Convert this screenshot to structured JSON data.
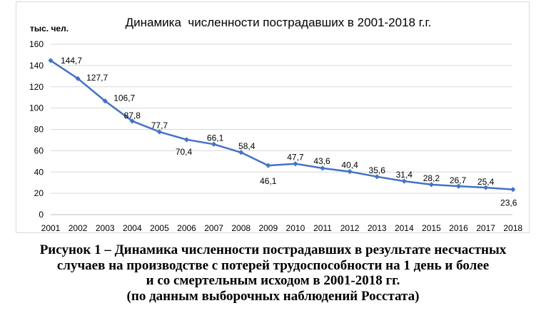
{
  "chart_data": {
    "type": "line",
    "title": "Динамика  численности пострадавших в 2001-2018 г.г.",
    "ylabel": "тыс. чел.",
    "xlabel": "",
    "categories": [
      "2001",
      "2002",
      "2003",
      "2004",
      "2005",
      "2006",
      "2007",
      "2008",
      "2009",
      "2010",
      "2011",
      "2012",
      "2013",
      "2014",
      "2015",
      "2016",
      "2017",
      "2018"
    ],
    "values": [
      144.7,
      127.7,
      106.7,
      87.8,
      77.7,
      70.4,
      66.1,
      58.4,
      46.1,
      47.7,
      43.6,
      40.4,
      35.6,
      31.4,
      28.2,
      26.7,
      25.4,
      23.6
    ],
    "data_labels": [
      "144,7",
      "127,7",
      "106,7",
      "87,8",
      "77,7",
      "70,4",
      "66,1",
      "58,4",
      "46,1",
      "47,7",
      "43,6",
      "40,4",
      "35,6",
      "31,4",
      "28,2",
      "26,7",
      "25,4",
      "23,6"
    ],
    "yticks": [
      "0",
      "20",
      "40",
      "60",
      "80",
      "100",
      "120",
      "140",
      "160"
    ],
    "ylim": [
      0,
      160
    ],
    "grid": true,
    "legend": "none",
    "colors": {
      "line": "#4472c4",
      "grid": "#d9d9d9",
      "text": "#000000"
    }
  },
  "caption": {
    "lines": [
      "Рисунок 1 – Динамика численности пострадавших в результате несчастных",
      "случаев на производстве с потерей трудоспособности на 1 день и более",
      "и со смертельным исходом в 2001-2018 гг.",
      "(по данным выборочных наблюдений Росстата)"
    ]
  }
}
